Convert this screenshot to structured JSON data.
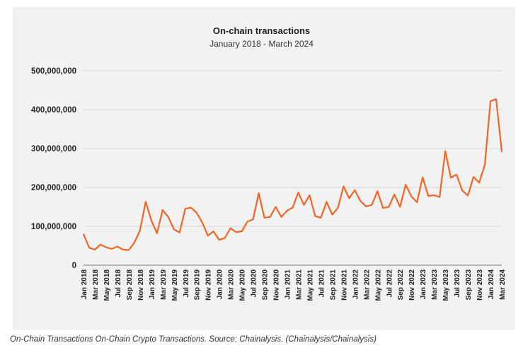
{
  "chart_data": {
    "type": "line",
    "title": "On-chain transactions",
    "subtitle": "January 2018 - March 2024",
    "xlabel": "",
    "ylabel": "",
    "ylim": [
      0,
      500000000
    ],
    "yticks": [
      "0",
      "100,000,000",
      "200,000,000",
      "300,000,000",
      "400,000,000",
      "500,000,000"
    ],
    "ytick_values": [
      0,
      100000000,
      200000000,
      300000000,
      400000000,
      500000000
    ],
    "xtick_labels": [
      "Jan 2018",
      "Mar 2018",
      "May 2018",
      "Jul 2018",
      "Sep 2018",
      "Nov 2018",
      "Jan 2019",
      "Mar 2019",
      "May 2019",
      "Jul 2019",
      "Sep 2019",
      "Nov 2019",
      "Jan 2020",
      "Mar 2020",
      "May 2020",
      "Jul 2020",
      "Sep 2020",
      "Nov 2020",
      "Jan 2021",
      "Mar 2021",
      "May 2021",
      "Jul 2021",
      "Sep 2021",
      "Nov 2021",
      "Jan 2022",
      "Mar 2022",
      "May 2022",
      "Jul 2022",
      "Sep 2022",
      "Nov 2022",
      "Jan 2023",
      "Mar 2023",
      "May 2023",
      "Jul 2023",
      "Sep 2023",
      "Nov 2023",
      "Jan 2024",
      "Mar 2024"
    ],
    "series": [
      {
        "name": "On-chain transactions",
        "color": "#f26522",
        "values": [
          80000000,
          45000000,
          40000000,
          53000000,
          46000000,
          42000000,
          48000000,
          40000000,
          39000000,
          58000000,
          90000000,
          163000000,
          115000000,
          82000000,
          142000000,
          124000000,
          92000000,
          84000000,
          145000000,
          148000000,
          135000000,
          110000000,
          76000000,
          87000000,
          65000000,
          70000000,
          95000000,
          85000000,
          87000000,
          112000000,
          118000000,
          185000000,
          122000000,
          124000000,
          150000000,
          124000000,
          140000000,
          148000000,
          187000000,
          155000000,
          180000000,
          126000000,
          122000000,
          163000000,
          130000000,
          147000000,
          203000000,
          172000000,
          193000000,
          165000000,
          151000000,
          155000000,
          190000000,
          147000000,
          150000000,
          182000000,
          150000000,
          207000000,
          177000000,
          162000000,
          226000000,
          178000000,
          180000000,
          175000000,
          293000000,
          225000000,
          233000000,
          192000000,
          179000000,
          227000000,
          212000000,
          258000000,
          422000000,
          427000000,
          292000000
        ]
      }
    ]
  },
  "caption": "On-Chain Transactions On-Chain Crypto Transactions. Source: Chainalysis. (Chainalysis/Chainalysis)"
}
